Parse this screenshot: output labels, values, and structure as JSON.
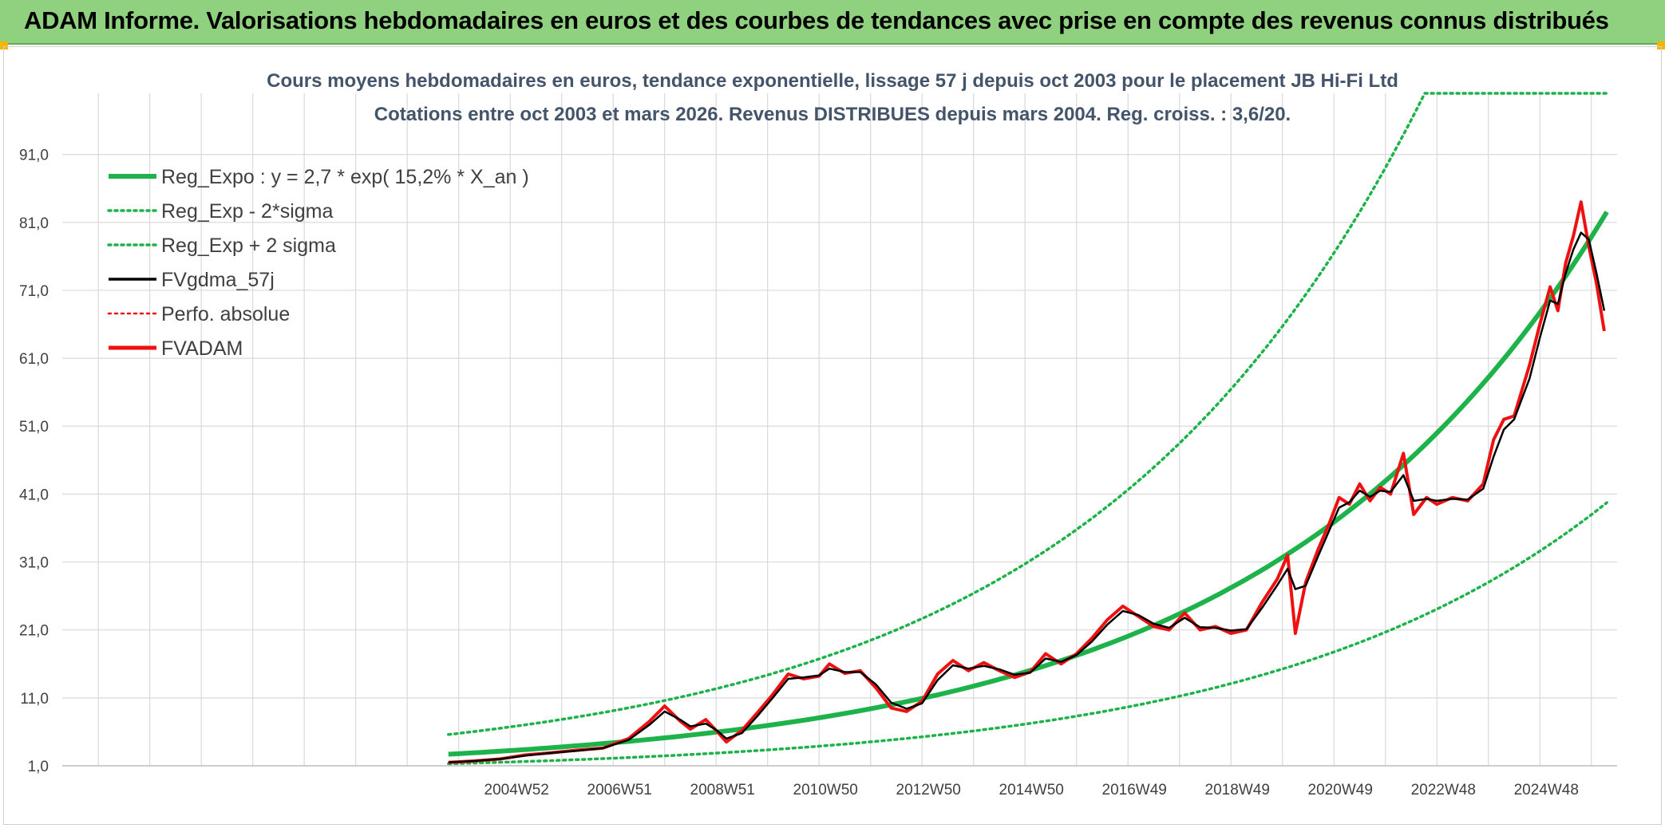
{
  "banner": {
    "title": "ADAM Informe. Valorisations hebdomadaires en euros et des courbes de tendances avec prise en compte des revenus connus distribués"
  },
  "colors": {
    "banner_bg": "#8fd17f",
    "reg_green": "#1db34a",
    "black": "#000000",
    "red": "#ee1111",
    "grid": "#d9d9d9",
    "corner": "#f4b400"
  },
  "chart_data": {
    "type": "line",
    "title_lines": [
      "Cours moyens hebdomadaires en euros, tendance exponentielle, lissage 57 j depuis oct 2003 pour le placement JB Hi-Fi Ltd",
      "Cotations entre oct 2003 et mars 2026. Revenus DISTRIBUES depuis mars 2004. Reg. croiss. : 3,6/20."
    ],
    "x_unit": "year",
    "xlim": [
      1996.3,
      2026.5
    ],
    "ylim": [
      1.0,
      100.0
    ],
    "y_ticks": [
      "1,0",
      "11,0",
      "21,0",
      "31,0",
      "41,0",
      "51,0",
      "61,0",
      "71,0",
      "81,0",
      "91,0"
    ],
    "x_ticks": [
      {
        "label": "2004W52",
        "x": 2005.0
      },
      {
        "label": "2006W51",
        "x": 2007.0
      },
      {
        "label": "2008W51",
        "x": 2009.0
      },
      {
        "label": "2010W50",
        "x": 2011.0
      },
      {
        "label": "2012W50",
        "x": 2013.0
      },
      {
        "label": "2014W50",
        "x": 2015.0
      },
      {
        "label": "2016W49",
        "x": 2017.0
      },
      {
        "label": "2018W49",
        "x": 2019.0
      },
      {
        "label": "2020W49",
        "x": 2021.0
      },
      {
        "label": "2022W48",
        "x": 2023.0
      },
      {
        "label": "2024W48",
        "x": 2025.0
      }
    ],
    "legend": [
      {
        "key": "reg_expo",
        "label": "Reg_Expo : y = 2,7 * exp( 15,2% *  X_an )",
        "style": "solid",
        "color": "#1db34a",
        "width": 6
      },
      {
        "key": "reg_minus",
        "label": "Reg_Exp - 2*sigma",
        "style": "dotted",
        "color": "#1db34a",
        "width": 3.5
      },
      {
        "key": "reg_plus",
        "label": "Reg_Exp + 2 sigma",
        "style": "dotted",
        "color": "#1db34a",
        "width": 3.5
      },
      {
        "key": "fvgdma",
        "label": "FVgdma_57j",
        "style": "solid",
        "color": "#000000",
        "width": 3.5
      },
      {
        "key": "perfo",
        "label": "Perfo. absolue",
        "style": "dotted",
        "color": "#ee1111",
        "width": 2.5
      },
      {
        "key": "fvadam",
        "label": "FVADAM",
        "style": "solid",
        "color": "#ee1111",
        "width": 5
      }
    ],
    "series": [
      {
        "name": "Reg_Expo",
        "x_start": 2003.8,
        "x_end": 2026.3,
        "base_y": 2.7,
        "rate": 0.152
      },
      {
        "name": "Reg_Exp - 2*sigma",
        "x_start": 2003.8,
        "x_end": 2026.3,
        "base_y": 1.3,
        "rate": 0.152
      },
      {
        "name": "Reg_Exp + 2 sigma",
        "x_start": 2003.8,
        "x_end": 2026.3,
        "base_y": 5.6,
        "rate": 0.152,
        "cap": 100.0
      },
      {
        "name": "FVADAM",
        "points": [
          [
            2003.8,
            1.5
          ],
          [
            2004.3,
            1.7
          ],
          [
            2004.8,
            2.0
          ],
          [
            2005.3,
            2.6
          ],
          [
            2005.8,
            2.9
          ],
          [
            2006.3,
            3.3
          ],
          [
            2006.8,
            3.6
          ],
          [
            2007.3,
            5.0
          ],
          [
            2007.7,
            7.5
          ],
          [
            2008.0,
            9.8
          ],
          [
            2008.3,
            7.6
          ],
          [
            2008.5,
            6.4
          ],
          [
            2008.8,
            7.8
          ],
          [
            2009.0,
            6.2
          ],
          [
            2009.2,
            4.5
          ],
          [
            2009.5,
            6.2
          ],
          [
            2009.8,
            8.8
          ],
          [
            2010.1,
            11.5
          ],
          [
            2010.4,
            14.5
          ],
          [
            2010.7,
            13.8
          ],
          [
            2011.0,
            14.2
          ],
          [
            2011.2,
            16.0
          ],
          [
            2011.5,
            14.6
          ],
          [
            2011.8,
            15.0
          ],
          [
            2012.1,
            12.5
          ],
          [
            2012.4,
            9.5
          ],
          [
            2012.7,
            9.0
          ],
          [
            2013.0,
            10.5
          ],
          [
            2013.3,
            14.5
          ],
          [
            2013.6,
            16.5
          ],
          [
            2013.9,
            15.0
          ],
          [
            2014.2,
            16.2
          ],
          [
            2014.5,
            15.0
          ],
          [
            2014.8,
            14.0
          ],
          [
            2015.1,
            14.8
          ],
          [
            2015.4,
            17.5
          ],
          [
            2015.7,
            16.0
          ],
          [
            2016.0,
            17.5
          ],
          [
            2016.3,
            19.8
          ],
          [
            2016.6,
            22.5
          ],
          [
            2016.9,
            24.5
          ],
          [
            2017.2,
            23.0
          ],
          [
            2017.5,
            21.5
          ],
          [
            2017.8,
            21.0
          ],
          [
            2018.1,
            23.5
          ],
          [
            2018.4,
            21.0
          ],
          [
            2018.7,
            21.5
          ],
          [
            2019.0,
            20.5
          ],
          [
            2019.3,
            21.0
          ],
          [
            2019.6,
            25.0
          ],
          [
            2019.9,
            28.5
          ],
          [
            2020.1,
            32.0
          ],
          [
            2020.25,
            20.5
          ],
          [
            2020.45,
            28.0
          ],
          [
            2020.7,
            33.0
          ],
          [
            2020.9,
            36.5
          ],
          [
            2021.1,
            40.5
          ],
          [
            2021.3,
            39.5
          ],
          [
            2021.5,
            42.5
          ],
          [
            2021.7,
            40.0
          ],
          [
            2021.9,
            42.0
          ],
          [
            2022.1,
            41.0
          ],
          [
            2022.35,
            47.0
          ],
          [
            2022.55,
            38.0
          ],
          [
            2022.8,
            40.5
          ],
          [
            2023.0,
            39.5
          ],
          [
            2023.3,
            40.5
          ],
          [
            2023.6,
            40.0
          ],
          [
            2023.9,
            42.5
          ],
          [
            2024.1,
            49.0
          ],
          [
            2024.3,
            52.0
          ],
          [
            2024.5,
            52.5
          ],
          [
            2024.8,
            60.0
          ],
          [
            2025.0,
            66.0
          ],
          [
            2025.2,
            71.5
          ],
          [
            2025.35,
            68.0
          ],
          [
            2025.5,
            75.0
          ],
          [
            2025.65,
            79.0
          ],
          [
            2025.8,
            84.0
          ],
          [
            2025.95,
            77.5
          ],
          [
            2026.1,
            72.0
          ],
          [
            2026.25,
            65.0
          ]
        ]
      },
      {
        "name": "FVgdma_57j",
        "points": [
          [
            2003.8,
            1.5
          ],
          [
            2004.3,
            1.7
          ],
          [
            2004.8,
            2.0
          ],
          [
            2005.3,
            2.5
          ],
          [
            2005.8,
            2.9
          ],
          [
            2006.3,
            3.2
          ],
          [
            2006.8,
            3.6
          ],
          [
            2007.3,
            4.8
          ],
          [
            2007.7,
            7.0
          ],
          [
            2008.0,
            9.0
          ],
          [
            2008.3,
            7.8
          ],
          [
            2008.5,
            6.8
          ],
          [
            2008.8,
            7.2
          ],
          [
            2009.0,
            6.3
          ],
          [
            2009.2,
            5.0
          ],
          [
            2009.5,
            5.8
          ],
          [
            2009.8,
            8.3
          ],
          [
            2010.1,
            11.0
          ],
          [
            2010.4,
            13.8
          ],
          [
            2010.7,
            14.0
          ],
          [
            2011.0,
            14.3
          ],
          [
            2011.2,
            15.3
          ],
          [
            2011.5,
            14.8
          ],
          [
            2011.8,
            14.8
          ],
          [
            2012.1,
            13.0
          ],
          [
            2012.4,
            10.3
          ],
          [
            2012.7,
            9.4
          ],
          [
            2013.0,
            10.2
          ],
          [
            2013.3,
            13.6
          ],
          [
            2013.6,
            15.8
          ],
          [
            2013.9,
            15.3
          ],
          [
            2014.2,
            15.7
          ],
          [
            2014.5,
            15.2
          ],
          [
            2014.8,
            14.4
          ],
          [
            2015.1,
            14.7
          ],
          [
            2015.4,
            16.8
          ],
          [
            2015.7,
            16.3
          ],
          [
            2016.0,
            17.3
          ],
          [
            2016.3,
            19.3
          ],
          [
            2016.6,
            21.8
          ],
          [
            2016.9,
            23.8
          ],
          [
            2017.2,
            23.2
          ],
          [
            2017.5,
            21.9
          ],
          [
            2017.8,
            21.3
          ],
          [
            2018.1,
            22.8
          ],
          [
            2018.4,
            21.4
          ],
          [
            2018.7,
            21.3
          ],
          [
            2019.0,
            20.9
          ],
          [
            2019.3,
            21.1
          ],
          [
            2019.6,
            24.2
          ],
          [
            2019.9,
            27.6
          ],
          [
            2020.1,
            30.0
          ],
          [
            2020.25,
            27.0
          ],
          [
            2020.45,
            27.5
          ],
          [
            2020.7,
            32.0
          ],
          [
            2020.9,
            35.5
          ],
          [
            2021.1,
            39.0
          ],
          [
            2021.3,
            39.8
          ],
          [
            2021.5,
            41.5
          ],
          [
            2021.7,
            40.6
          ],
          [
            2021.9,
            41.5
          ],
          [
            2022.1,
            41.3
          ],
          [
            2022.35,
            43.8
          ],
          [
            2022.55,
            40.0
          ],
          [
            2022.8,
            40.3
          ],
          [
            2023.0,
            40.0
          ],
          [
            2023.3,
            40.3
          ],
          [
            2023.6,
            40.2
          ],
          [
            2023.9,
            41.8
          ],
          [
            2024.1,
            46.5
          ],
          [
            2024.3,
            50.5
          ],
          [
            2024.5,
            52.0
          ],
          [
            2024.8,
            58.0
          ],
          [
            2025.0,
            64.0
          ],
          [
            2025.2,
            69.5
          ],
          [
            2025.35,
            69.0
          ],
          [
            2025.5,
            73.5
          ],
          [
            2025.65,
            77.0
          ],
          [
            2025.8,
            79.5
          ],
          [
            2025.95,
            78.5
          ],
          [
            2026.1,
            73.5
          ],
          [
            2026.25,
            68.0
          ]
        ]
      }
    ]
  }
}
